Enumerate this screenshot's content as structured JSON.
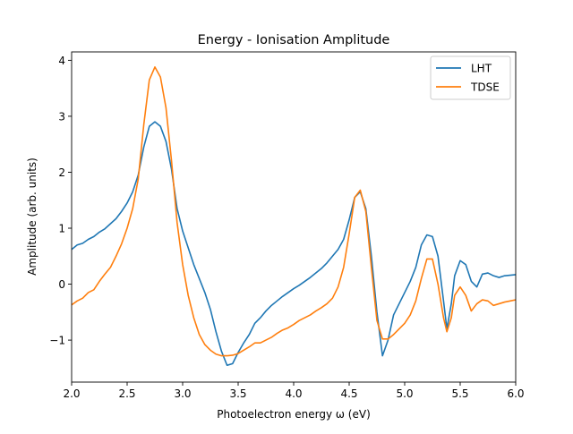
{
  "chart_data": {
    "type": "line",
    "title": "Energy - Ionisation Amplitude",
    "xlabel": "Photoelectron energy ω (eV)",
    "ylabel": "Amplitude (arb. units)",
    "xlim": [
      2.0,
      6.0
    ],
    "ylim": [
      -1.75,
      4.15
    ],
    "x_ticks": [
      2.0,
      2.5,
      3.0,
      3.5,
      4.0,
      4.5,
      5.0,
      5.5,
      6.0
    ],
    "x_tick_labels": [
      "2.0",
      "2.5",
      "3.0",
      "3.5",
      "4.0",
      "4.5",
      "5.0",
      "5.5",
      "6.0"
    ],
    "y_ticks": [
      -1,
      0,
      1,
      2,
      3,
      4
    ],
    "y_tick_labels": [
      "−1",
      "0",
      "1",
      "2",
      "3",
      "4"
    ],
    "grid": false,
    "legend_position": "top-right",
    "series": [
      {
        "name": "LHT",
        "color": "#1f77b4",
        "points": [
          [
            2.0,
            0.62
          ],
          [
            2.05,
            0.7
          ],
          [
            2.1,
            0.73
          ],
          [
            2.15,
            0.8
          ],
          [
            2.2,
            0.85
          ],
          [
            2.25,
            0.93
          ],
          [
            2.3,
            0.99
          ],
          [
            2.35,
            1.08
          ],
          [
            2.4,
            1.17
          ],
          [
            2.45,
            1.3
          ],
          [
            2.5,
            1.45
          ],
          [
            2.55,
            1.65
          ],
          [
            2.6,
            1.95
          ],
          [
            2.65,
            2.45
          ],
          [
            2.7,
            2.82
          ],
          [
            2.75,
            2.9
          ],
          [
            2.8,
            2.82
          ],
          [
            2.85,
            2.55
          ],
          [
            2.9,
            2.05
          ],
          [
            2.95,
            1.35
          ],
          [
            3.0,
            0.95
          ],
          [
            3.05,
            0.65
          ],
          [
            3.1,
            0.35
          ],
          [
            3.15,
            0.1
          ],
          [
            3.2,
            -0.15
          ],
          [
            3.25,
            -0.45
          ],
          [
            3.3,
            -0.85
          ],
          [
            3.35,
            -1.2
          ],
          [
            3.4,
            -1.45
          ],
          [
            3.45,
            -1.42
          ],
          [
            3.5,
            -1.22
          ],
          [
            3.55,
            -1.05
          ],
          [
            3.6,
            -0.9
          ],
          [
            3.65,
            -0.7
          ],
          [
            3.7,
            -0.6
          ],
          [
            3.75,
            -0.48
          ],
          [
            3.8,
            -0.38
          ],
          [
            3.85,
            -0.3
          ],
          [
            3.9,
            -0.22
          ],
          [
            3.95,
            -0.15
          ],
          [
            4.0,
            -0.08
          ],
          [
            4.05,
            -0.02
          ],
          [
            4.1,
            0.05
          ],
          [
            4.15,
            0.12
          ],
          [
            4.2,
            0.2
          ],
          [
            4.25,
            0.28
          ],
          [
            4.3,
            0.38
          ],
          [
            4.35,
            0.5
          ],
          [
            4.4,
            0.62
          ],
          [
            4.45,
            0.8
          ],
          [
            4.5,
            1.15
          ],
          [
            4.55,
            1.55
          ],
          [
            4.6,
            1.65
          ],
          [
            4.65,
            1.35
          ],
          [
            4.7,
            0.5
          ],
          [
            4.75,
            -0.5
          ],
          [
            4.8,
            -1.28
          ],
          [
            4.85,
            -1.0
          ],
          [
            4.9,
            -0.55
          ],
          [
            4.95,
            -0.35
          ],
          [
            5.0,
            -0.15
          ],
          [
            5.05,
            0.05
          ],
          [
            5.1,
            0.3
          ],
          [
            5.15,
            0.7
          ],
          [
            5.2,
            0.88
          ],
          [
            5.25,
            0.85
          ],
          [
            5.3,
            0.5
          ],
          [
            5.35,
            -0.3
          ],
          [
            5.38,
            -0.8
          ],
          [
            5.42,
            -0.35
          ],
          [
            5.45,
            0.15
          ],
          [
            5.5,
            0.42
          ],
          [
            5.55,
            0.35
          ],
          [
            5.6,
            0.05
          ],
          [
            5.65,
            -0.05
          ],
          [
            5.7,
            0.18
          ],
          [
            5.75,
            0.2
          ],
          [
            5.8,
            0.15
          ],
          [
            5.85,
            0.12
          ],
          [
            5.9,
            0.15
          ],
          [
            5.95,
            0.16
          ],
          [
            6.0,
            0.17
          ]
        ]
      },
      {
        "name": "TDSE",
        "color": "#ff7f0e",
        "points": [
          [
            2.0,
            -0.37
          ],
          [
            2.05,
            -0.3
          ],
          [
            2.1,
            -0.25
          ],
          [
            2.15,
            -0.15
          ],
          [
            2.2,
            -0.1
          ],
          [
            2.25,
            0.05
          ],
          [
            2.3,
            0.18
          ],
          [
            2.35,
            0.3
          ],
          [
            2.4,
            0.5
          ],
          [
            2.45,
            0.72
          ],
          [
            2.5,
            1.0
          ],
          [
            2.55,
            1.35
          ],
          [
            2.6,
            1.88
          ],
          [
            2.65,
            2.85
          ],
          [
            2.7,
            3.65
          ],
          [
            2.75,
            3.88
          ],
          [
            2.8,
            3.7
          ],
          [
            2.85,
            3.15
          ],
          [
            2.9,
            2.2
          ],
          [
            2.95,
            1.1
          ],
          [
            3.0,
            0.35
          ],
          [
            3.05,
            -0.2
          ],
          [
            3.1,
            -0.6
          ],
          [
            3.15,
            -0.9
          ],
          [
            3.2,
            -1.08
          ],
          [
            3.25,
            -1.18
          ],
          [
            3.3,
            -1.25
          ],
          [
            3.35,
            -1.28
          ],
          [
            3.4,
            -1.28
          ],
          [
            3.45,
            -1.27
          ],
          [
            3.5,
            -1.24
          ],
          [
            3.55,
            -1.18
          ],
          [
            3.6,
            -1.12
          ],
          [
            3.65,
            -1.05
          ],
          [
            3.7,
            -1.05
          ],
          [
            3.75,
            -1.0
          ],
          [
            3.8,
            -0.95
          ],
          [
            3.85,
            -0.88
          ],
          [
            3.9,
            -0.82
          ],
          [
            3.95,
            -0.78
          ],
          [
            4.0,
            -0.72
          ],
          [
            4.05,
            -0.65
          ],
          [
            4.1,
            -0.6
          ],
          [
            4.15,
            -0.55
          ],
          [
            4.2,
            -0.48
          ],
          [
            4.25,
            -0.42
          ],
          [
            4.3,
            -0.35
          ],
          [
            4.35,
            -0.25
          ],
          [
            4.4,
            -0.05
          ],
          [
            4.45,
            0.3
          ],
          [
            4.5,
            0.9
          ],
          [
            4.55,
            1.55
          ],
          [
            4.6,
            1.68
          ],
          [
            4.65,
            1.3
          ],
          [
            4.7,
            0.3
          ],
          [
            4.75,
            -0.65
          ],
          [
            4.8,
            -0.98
          ],
          [
            4.85,
            -0.98
          ],
          [
            4.9,
            -0.9
          ],
          [
            4.95,
            -0.8
          ],
          [
            5.0,
            -0.7
          ],
          [
            5.05,
            -0.55
          ],
          [
            5.1,
            -0.3
          ],
          [
            5.15,
            0.1
          ],
          [
            5.2,
            0.45
          ],
          [
            5.25,
            0.45
          ],
          [
            5.3,
            0.0
          ],
          [
            5.35,
            -0.6
          ],
          [
            5.38,
            -0.85
          ],
          [
            5.42,
            -0.6
          ],
          [
            5.45,
            -0.2
          ],
          [
            5.5,
            -0.05
          ],
          [
            5.55,
            -0.2
          ],
          [
            5.6,
            -0.48
          ],
          [
            5.65,
            -0.35
          ],
          [
            5.7,
            -0.28
          ],
          [
            5.75,
            -0.3
          ],
          [
            5.8,
            -0.38
          ],
          [
            5.85,
            -0.35
          ],
          [
            5.9,
            -0.32
          ],
          [
            5.95,
            -0.3
          ],
          [
            6.0,
            -0.28
          ]
        ]
      }
    ]
  }
}
